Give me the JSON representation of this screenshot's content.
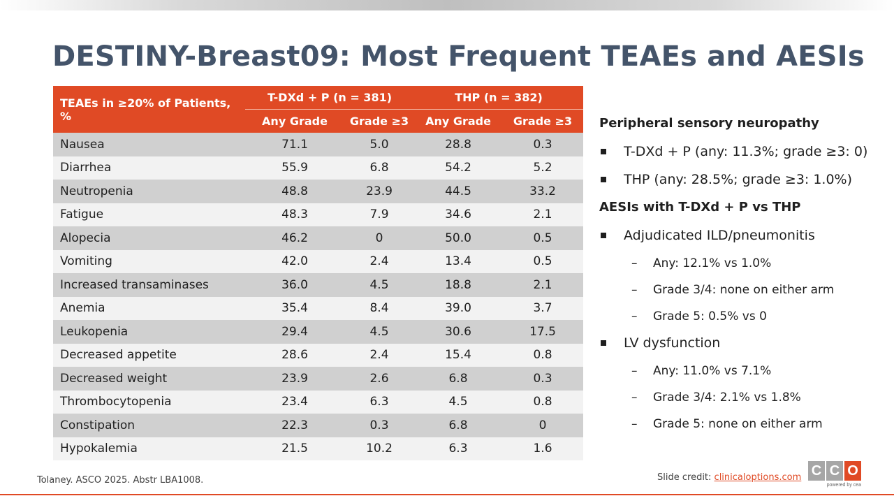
{
  "slide": {
    "title": "DESTINY-Breast09: Most Frequent TEAEs and AESIs"
  },
  "table": {
    "row_header": "TEAEs in ≥20% of Patients, %",
    "group1": "T-DXd + P (n = 381)",
    "group2": "THP (n = 382)",
    "subheaders": [
      "Any Grade",
      "Grade ≥3",
      "Any Grade",
      "Grade ≥3"
    ],
    "rows": [
      {
        "name": "Nausea",
        "v": [
          "71.1",
          "5.0",
          "28.8",
          "0.3"
        ]
      },
      {
        "name": "Diarrhea",
        "v": [
          "55.9",
          "6.8",
          "54.2",
          "5.2"
        ]
      },
      {
        "name": "Neutropenia",
        "v": [
          "48.8",
          "23.9",
          "44.5",
          "33.2"
        ]
      },
      {
        "name": "Fatigue",
        "v": [
          "48.3",
          "7.9",
          "34.6",
          "2.1"
        ]
      },
      {
        "name": "Alopecia",
        "v": [
          "46.2",
          "0",
          "50.0",
          "0.5"
        ]
      },
      {
        "name": "Vomiting",
        "v": [
          "42.0",
          "2.4",
          "13.4",
          "0.5"
        ]
      },
      {
        "name": "Increased transaminases",
        "v": [
          "36.0",
          "4.5",
          "18.8",
          "2.1"
        ]
      },
      {
        "name": "Anemia",
        "v": [
          "35.4",
          "8.4",
          "39.0",
          "3.7"
        ]
      },
      {
        "name": "Leukopenia",
        "v": [
          "29.4",
          "4.5",
          "30.6",
          "17.5"
        ]
      },
      {
        "name": "Decreased appetite",
        "v": [
          "28.6",
          "2.4",
          "15.4",
          "0.8"
        ]
      },
      {
        "name": "Decreased weight",
        "v": [
          "23.9",
          "2.6",
          "6.8",
          "0.3"
        ]
      },
      {
        "name": "Thrombocytopenia",
        "v": [
          "23.4",
          "6.3",
          "4.5",
          "0.8"
        ]
      },
      {
        "name": "Constipation",
        "v": [
          "22.3",
          "0.3",
          "6.8",
          "0"
        ]
      },
      {
        "name": "Hypokalemia",
        "v": [
          "21.5",
          "10.2",
          "6.3",
          "1.6"
        ]
      }
    ]
  },
  "right_panel": {
    "psn_heading": "Peripheral sensory neuropathy",
    "psn_bullet1": "T-DXd + P (any: 11.3%; grade ≥3: 0)",
    "psn_bullet2": "THP (any: 28.5%; grade ≥3: 1.0%)",
    "aesi_heading": "AESIs with T-DXd + P vs THP",
    "ild_bullet": "Adjudicated ILD/pneumonitis",
    "ild_sub1": "Any: 12.1% vs 1.0%",
    "ild_sub2": "Grade 3/4: none on either arm",
    "ild_sub3": "Grade 5: 0.5% vs 0",
    "lv_bullet": "LV dysfunction",
    "lv_sub1": "Any: 11.0% vs 7.1%",
    "lv_sub2": "Grade 3/4: 2.1% vs 1.8%",
    "lv_sub3": "Grade 5: none on either arm",
    "dash": "–"
  },
  "footer": {
    "citation": "Tolaney. ASCO 2025. Abstr LBA1008.",
    "credit_label": "Slide credit: ",
    "credit_link": "clinicaloptions.com"
  },
  "logo": {
    "letters": [
      "C",
      "C",
      "O"
    ],
    "tagline": "powered by cea",
    "colors": [
      "#a6a6a6",
      "#a6a6a6",
      "#e04a25"
    ]
  },
  "colors": {
    "accent": "#e04a25",
    "title": "#44546a",
    "row_dark": "#d0d0d0",
    "row_light": "#f2f2f2"
  }
}
